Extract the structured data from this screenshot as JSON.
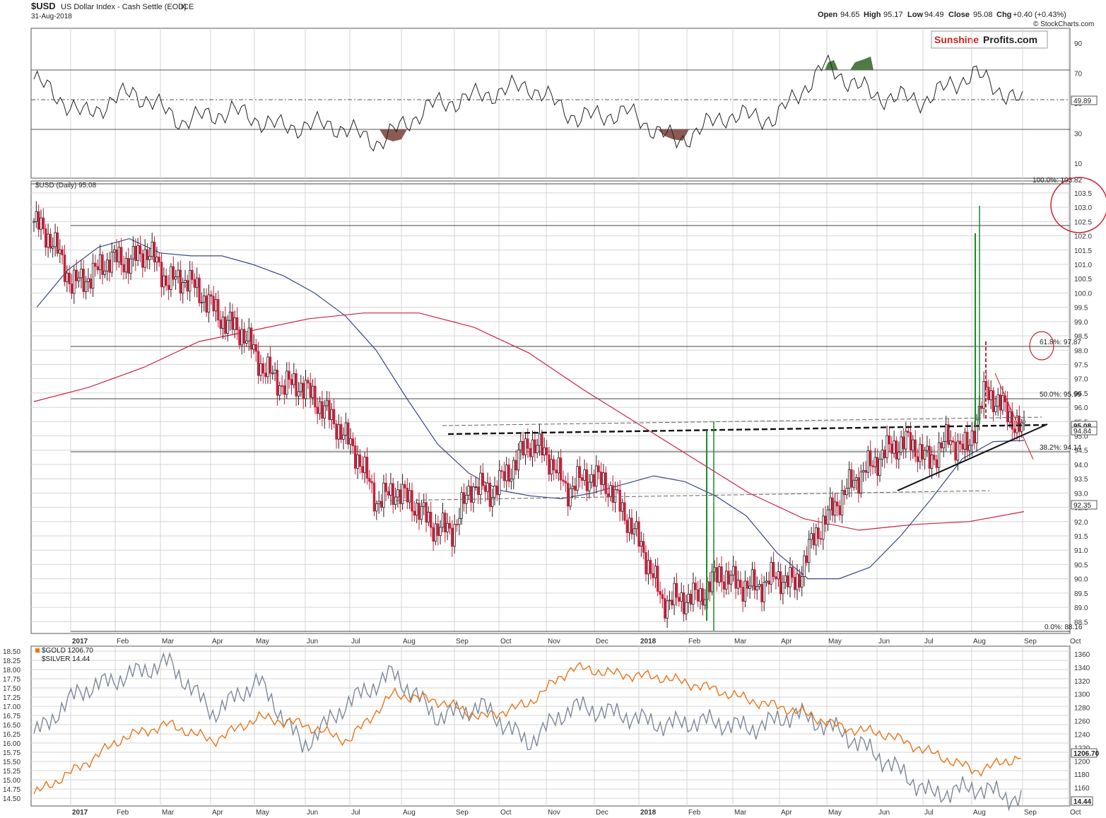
{
  "header": {
    "symbol": "$USD",
    "name": "US Dollar Index - Cash Settle (EOD)",
    "exchange": "ICE",
    "date": "31-Aug-2018",
    "open_label": "Open",
    "open": "94.65",
    "high_label": "High",
    "high": "95.17",
    "low_label": "Low",
    "low": "94.49",
    "close_label": "Close",
    "close": "95.08",
    "chg_label": "Chg",
    "chg": "+0.40 (+0.43%)",
    "watermark": "© StockCharts.com",
    "logo_part1": "Sunshine",
    "logo_part2": "Profits.com"
  },
  "colors": {
    "up_candle": "#ffffff",
    "down_candle": "#cc1f3c",
    "ma50": "#3b4a86",
    "ma200": "#cc2244",
    "gold": "#e8751a",
    "silver": "#7d889a",
    "rsi_high_fill": "#4f7a45",
    "rsi_low_fill": "#8a5a55",
    "projection": "#1a8a2a",
    "annotation_red": "#cc2233"
  },
  "chart_data": [
    {
      "type": "line",
      "panel": "RSI",
      "ylim": [
        0,
        100
      ],
      "ticks": [
        "90",
        "70",
        "50",
        "30",
        "10"
      ],
      "levels": [
        70,
        50,
        30
      ],
      "last_value": "49.89",
      "x": [
        "2017-01",
        "2017-02",
        "2017-03",
        "2017-04",
        "2017-05",
        "2017-06",
        "2017-07",
        "2017-08",
        "2017-09",
        "2017-10",
        "2017-11",
        "2017-12",
        "2018-01",
        "2018-02",
        "2018-03",
        "2018-04",
        "2018-05",
        "2018-06",
        "2018-07",
        "2018-08",
        "2018-08-31"
      ],
      "values": [
        66,
        42,
        58,
        38,
        45,
        34,
        36,
        24,
        48,
        55,
        62,
        40,
        44,
        24,
        42,
        40,
        75,
        55,
        52,
        70,
        49.89
      ]
    },
    {
      "type": "candlestick",
      "panel": "price",
      "title": "$USD (Daily) 95.08",
      "ylim": [
        88,
        104
      ],
      "y_ticks": [
        "103.5",
        "103.0",
        "102.5",
        "102.0",
        "101.5",
        "101.0",
        "100.5",
        "100.0",
        "99.5",
        "99.0",
        "98.5",
        "98.0",
        "97.5",
        "97.0",
        "96.5",
        "96.0",
        "95.5",
        "95.0",
        "94.5",
        "94.0",
        "93.5",
        "93.0",
        "92.5",
        "92.0",
        "91.5",
        "91.0",
        "90.5",
        "90.0",
        "89.5",
        "89.0",
        "88.5"
      ],
      "fib_levels": [
        {
          "label": "100.0%: 103.82",
          "value": 103.82
        },
        {
          "label": "61.8%: 97.87",
          "value": 97.87
        },
        {
          "label": "50.0%: 95.99",
          "value": 95.99
        },
        {
          "label": "38.2%: 94.14",
          "value": 94.14
        },
        {
          "label": "0.0%: 88.16",
          "value": 88.16
        }
      ],
      "horizontal_lines": [
        102.25
      ],
      "last_value": "95.08",
      "ma50_last": "94.84",
      "ma200_last": "92.35",
      "x": [
        "2017-01-03",
        "2017-01-13",
        "2017-01-24",
        "2017-02-03",
        "2017-02-14",
        "2017-02-24",
        "2017-03-08",
        "2017-03-20",
        "2017-03-31",
        "2017-04-12",
        "2017-04-25",
        "2017-05-08",
        "2017-05-19",
        "2017-06-01",
        "2017-06-13",
        "2017-06-26",
        "2017-07-07",
        "2017-07-19",
        "2017-07-31",
        "2017-08-11",
        "2017-08-23",
        "2017-09-05",
        "2017-09-15",
        "2017-09-27",
        "2017-10-10",
        "2017-10-20",
        "2017-11-01",
        "2017-11-13",
        "2017-11-24",
        "2017-12-06",
        "2017-12-18",
        "2018-01-02",
        "2018-01-12",
        "2018-01-25",
        "2018-02-06",
        "2018-02-16",
        "2018-02-28",
        "2018-03-12",
        "2018-03-23",
        "2018-04-05",
        "2018-04-17",
        "2018-04-30",
        "2018-05-10",
        "2018-05-22",
        "2018-06-04",
        "2018-06-14",
        "2018-06-26",
        "2018-07-09",
        "2018-07-19",
        "2018-07-31",
        "2018-08-13",
        "2018-08-20",
        "2018-08-31"
      ],
      "values": [
        102.5,
        101.8,
        100.3,
        100.6,
        101.2,
        101.1,
        101.5,
        100.4,
        100.5,
        99.8,
        99.0,
        98.6,
        97.4,
        96.8,
        96.8,
        96.1,
        95.3,
        94.3,
        92.7,
        93.1,
        92.6,
        91.8,
        91.7,
        93.3,
        93.0,
        93.8,
        94.8,
        94.3,
        93.1,
        93.6,
        93.4,
        92.3,
        91.0,
        89.2,
        89.3,
        89.4,
        90.2,
        89.8,
        89.7,
        90.1,
        89.8,
        91.5,
        92.5,
        93.4,
        94.0,
        94.6,
        94.8,
        94.1,
        94.9,
        94.5,
        96.6,
        95.9,
        95.08
      ],
      "ma50": [
        99.5,
        100.8,
        101.6,
        101.9,
        101.4,
        101.3,
        101.3,
        101.0,
        100.6,
        100.0,
        99.2,
        98.0,
        96.3,
        94.7,
        93.7,
        93.1,
        92.9,
        92.8,
        93.0,
        93.3,
        93.6,
        93.4,
        92.9,
        92.2,
        90.9,
        90.0,
        90.0,
        90.4,
        91.5,
        92.8,
        94.2,
        94.8,
        94.84
      ],
      "ma200": [
        96.2,
        96.7,
        97.4,
        98.3,
        98.7,
        99.1,
        99.3,
        99.3,
        98.8,
        97.9,
        96.6,
        95.4,
        94.2,
        93.0,
        92.1,
        91.7,
        91.9,
        92.0,
        92.35
      ]
    },
    {
      "type": "line",
      "panel": "metals",
      "series": [
        {
          "name": "$GOLD 1206.70",
          "last": "1206.70",
          "values": [
            1150,
            1190,
            1235,
            1255,
            1230,
            1265,
            1255,
            1230,
            1300,
            1290,
            1265,
            1285,
            1340,
            1330,
            1325,
            1310,
            1290,
            1275,
            1250,
            1240,
            1212,
            1185,
            1206.7
          ]
        },
        {
          "name": "$SILVER 14.44",
          "last": "14.44",
          "values": [
            16.2,
            17.4,
            17.8,
            18.2,
            16.8,
            17.7,
            15.9,
            17.1,
            17.9,
            16.7,
            17.0,
            16.0,
            17.0,
            16.8,
            16.5,
            16.6,
            16.4,
            16.8,
            16.3,
            15.5,
            14.6,
            14.8,
            14.44
          ]
        }
      ],
      "left_ticks": [
        "18.50",
        "18.25",
        "18.00",
        "17.75",
        "17.50",
        "17.25",
        "17.00",
        "16.75",
        "16.50",
        "16.25",
        "16.00",
        "15.75",
        "15.50",
        "15.25",
        "15.00",
        "14.75",
        "14.50"
      ],
      "right_ticks": [
        "1360",
        "1340",
        "1320",
        "1300",
        "1280",
        "1260",
        "1240",
        "1220",
        "1200",
        "1180",
        "1160",
        "1140"
      ]
    }
  ],
  "months_price": [
    "2017",
    "Feb",
    "Mar",
    "Apr",
    "May",
    "Jun",
    "Jul",
    "Aug",
    "Sep",
    "Oct",
    "Nov",
    "Dec",
    "2018",
    "Feb",
    "Mar",
    "Apr",
    "May",
    "Jun",
    "Jul",
    "Aug",
    "Sep",
    "Oct"
  ],
  "months_metals": [
    "2017",
    "Feb",
    "Mar",
    "Apr",
    "May",
    "Jun",
    "Jul",
    "Aug",
    "Sep",
    "Oct",
    "Nov",
    "Dec",
    "2018",
    "Feb",
    "Mar",
    "Apr",
    "May",
    "Jun",
    "Jul",
    "Aug",
    "Sep",
    "Oct"
  ]
}
